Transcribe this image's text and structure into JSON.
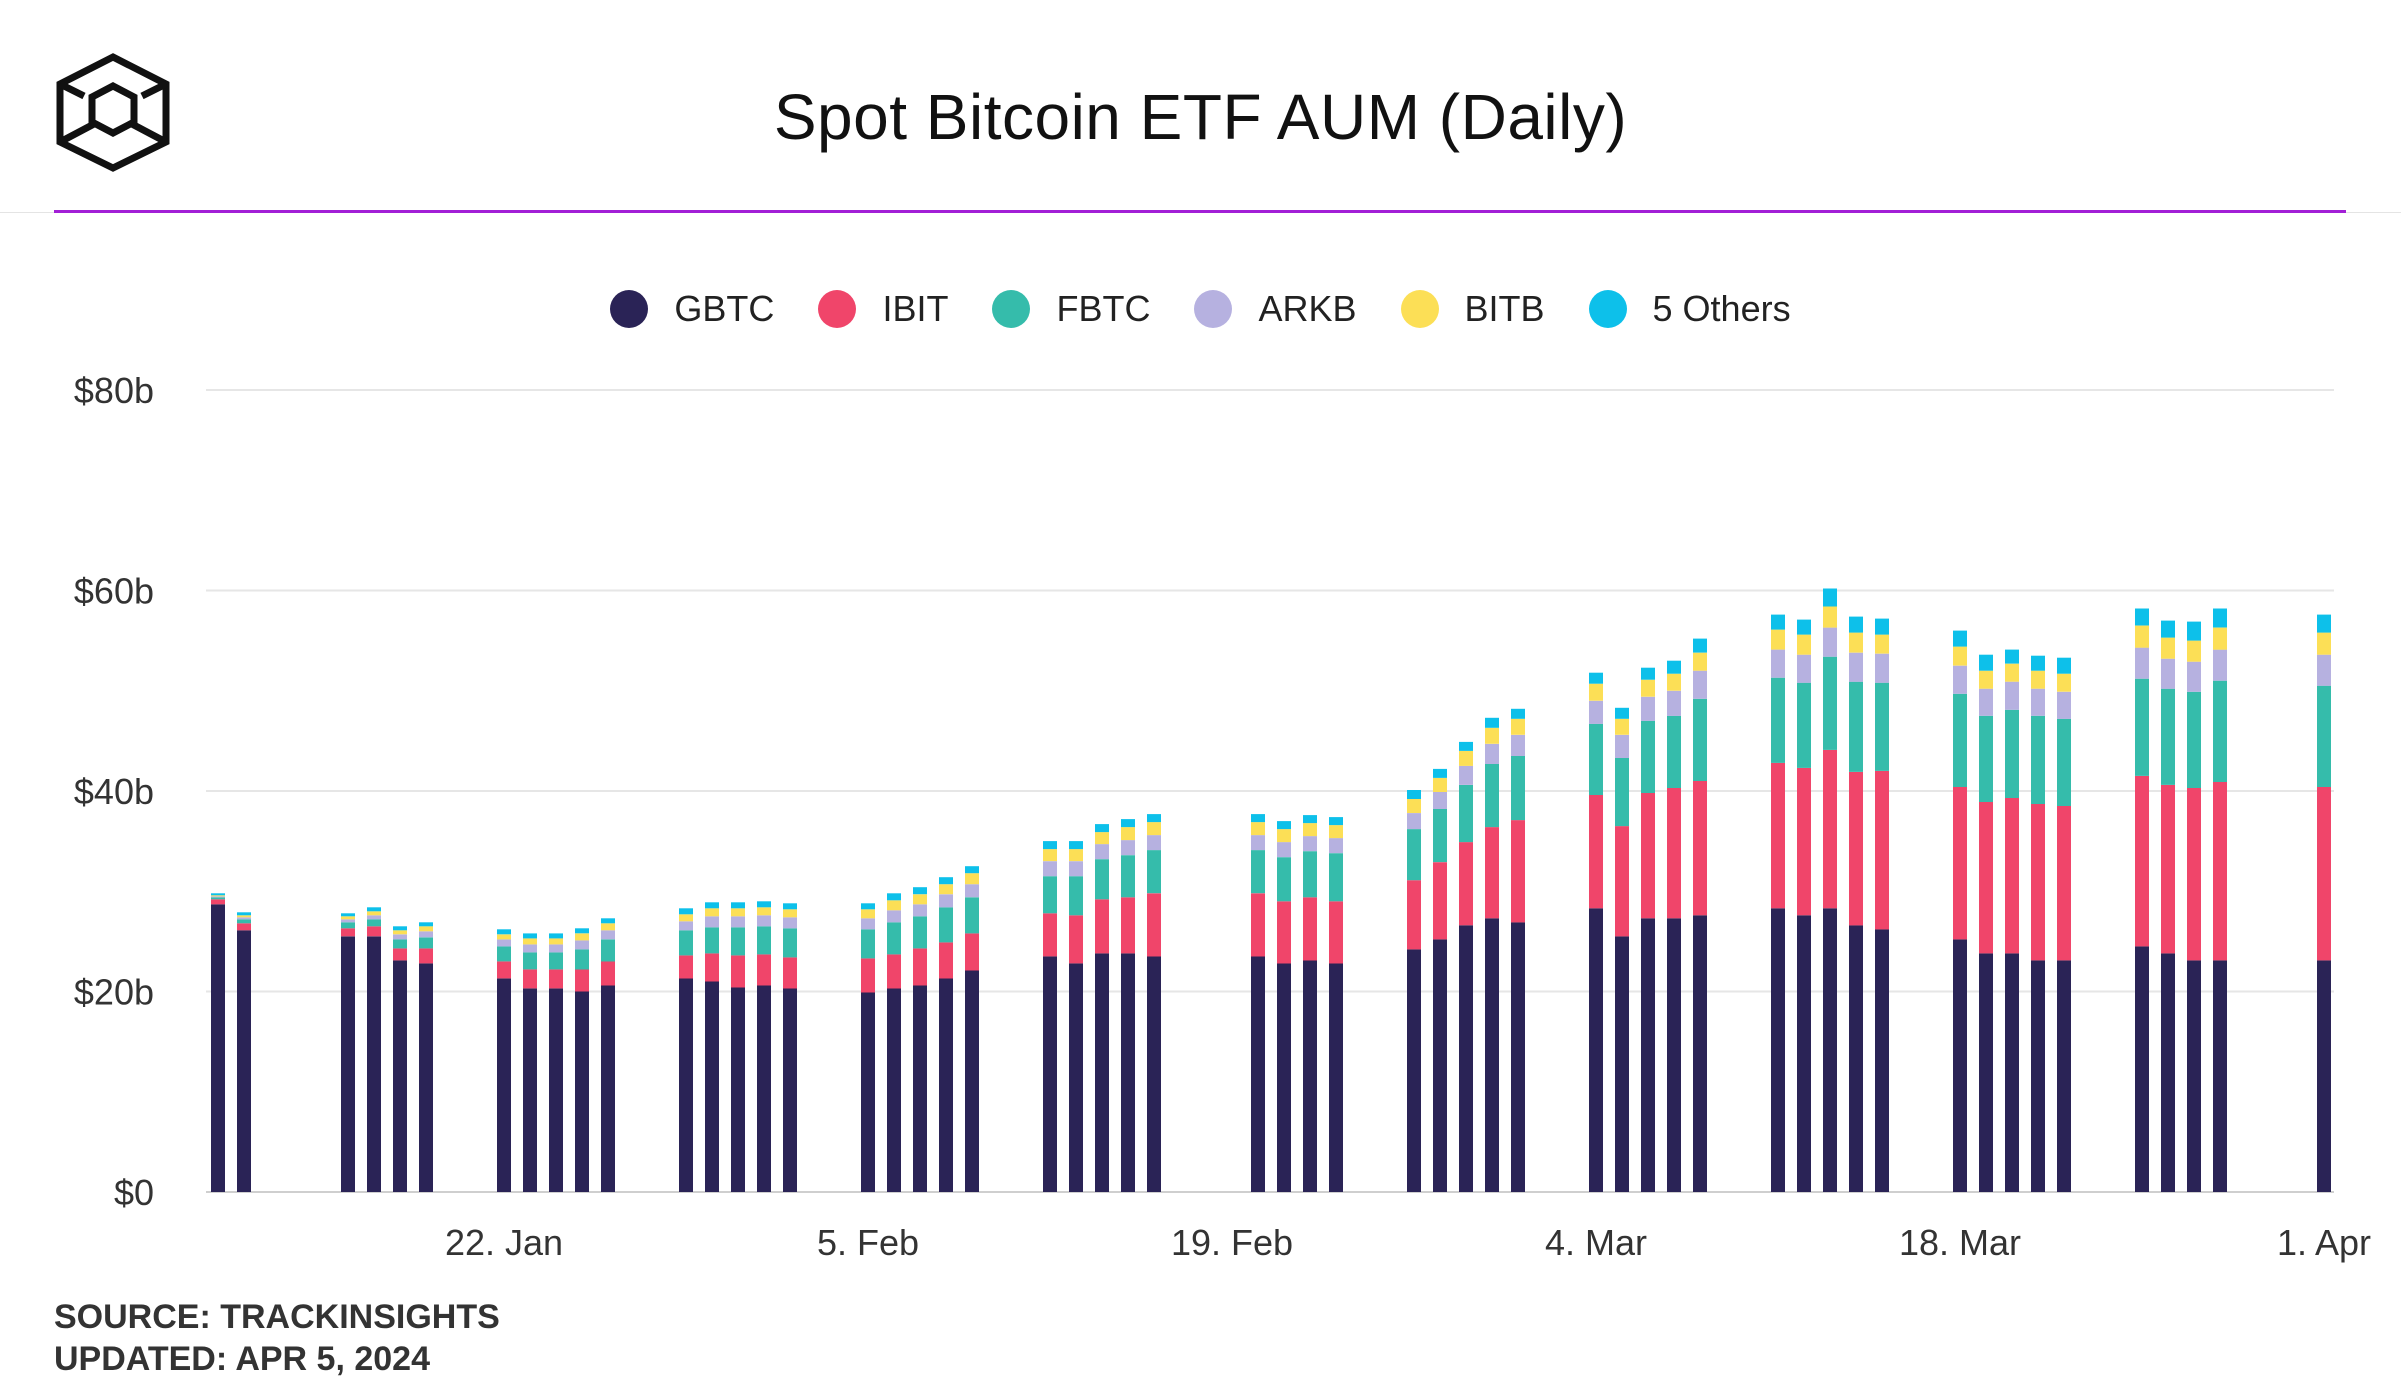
{
  "title": "Spot Bitcoin ETF AUM (Daily)",
  "logo_icon": "the-block-cube-logo-icon",
  "accent_color": "#a21fd6",
  "footer": {
    "source": "SOURCE: TRACKINSIGHTS",
    "updated": "UPDATED: APR 5, 2024"
  },
  "chart_data": {
    "type": "bar",
    "stacked": true,
    "title": "Spot Bitcoin ETF AUM (Daily)",
    "xlabel": "",
    "ylabel": "",
    "ylim": [
      0,
      80
    ],
    "y_ticks": [
      0,
      20,
      40,
      60,
      80
    ],
    "y_tick_labels": [
      "$0",
      "$20b",
      "$40b",
      "$60b",
      "$80b"
    ],
    "grid": true,
    "legend_position": "top-center",
    "x_range": [
      "2024-01-11",
      "2024-04-01"
    ],
    "x_ticks": [
      "2024-01-22",
      "2024-02-05",
      "2024-02-19",
      "2024-03-04",
      "2024-03-18",
      "2024-04-01"
    ],
    "x_tick_labels": [
      "22. Jan",
      "5. Feb",
      "19. Feb",
      "4. Mar",
      "18. Mar",
      "1. Apr"
    ],
    "dates": [
      "2024-01-11",
      "2024-01-12",
      "2024-01-16",
      "2024-01-17",
      "2024-01-18",
      "2024-01-19",
      "2024-01-22",
      "2024-01-23",
      "2024-01-24",
      "2024-01-25",
      "2024-01-26",
      "2024-01-29",
      "2024-01-30",
      "2024-01-31",
      "2024-02-01",
      "2024-02-02",
      "2024-02-05",
      "2024-02-06",
      "2024-02-07",
      "2024-02-08",
      "2024-02-09",
      "2024-02-12",
      "2024-02-13",
      "2024-02-14",
      "2024-02-15",
      "2024-02-16",
      "2024-02-20",
      "2024-02-21",
      "2024-02-22",
      "2024-02-23",
      "2024-02-26",
      "2024-02-27",
      "2024-02-28",
      "2024-02-29",
      "2024-03-01",
      "2024-03-04",
      "2024-03-05",
      "2024-03-06",
      "2024-03-07",
      "2024-03-08",
      "2024-03-11",
      "2024-03-12",
      "2024-03-13",
      "2024-03-14",
      "2024-03-15",
      "2024-03-18",
      "2024-03-19",
      "2024-03-20",
      "2024-03-21",
      "2024-03-22",
      "2024-03-25",
      "2024-03-26",
      "2024-03-27",
      "2024-03-28",
      "2024-04-01"
    ],
    "series": [
      {
        "name": "GBTC",
        "color": "#2a2356",
        "values": [
          28.7,
          26.1,
          25.5,
          25.5,
          23.1,
          22.8,
          21.3,
          20.3,
          20.3,
          20.0,
          20.6,
          21.3,
          21.0,
          20.4,
          20.6,
          20.3,
          19.9,
          20.3,
          20.6,
          21.3,
          22.1,
          23.5,
          22.8,
          23.8,
          23.8,
          23.5,
          23.5,
          22.8,
          23.1,
          22.8,
          24.2,
          25.2,
          26.6,
          27.3,
          26.9,
          28.3,
          25.5,
          27.3,
          27.3,
          27.6,
          28.3,
          27.6,
          28.3,
          26.6,
          26.2,
          25.2,
          23.8,
          23.8,
          23.1,
          23.1,
          24.5,
          23.8,
          23.1,
          23.1,
          23.1
        ]
      },
      {
        "name": "IBIT",
        "color": "#f0456a",
        "values": [
          0.5,
          0.7,
          0.8,
          1.0,
          1.2,
          1.5,
          1.7,
          1.9,
          1.9,
          2.2,
          2.4,
          2.3,
          2.8,
          3.2,
          3.1,
          3.1,
          3.4,
          3.4,
          3.7,
          3.6,
          3.7,
          4.3,
          4.8,
          5.4,
          5.6,
          6.3,
          6.3,
          6.2,
          6.3,
          6.2,
          6.9,
          7.7,
          8.3,
          9.1,
          10.2,
          11.3,
          11.0,
          12.5,
          13.0,
          13.4,
          14.5,
          14.7,
          15.8,
          15.3,
          15.8,
          15.2,
          15.1,
          15.5,
          15.6,
          15.4,
          17.0,
          16.8,
          17.2,
          17.8,
          17.3
        ]
      },
      {
        "name": "FBTC",
        "color": "#35bcab",
        "values": [
          0.2,
          0.4,
          0.6,
          0.7,
          0.9,
          1.1,
          1.5,
          1.7,
          1.7,
          2.0,
          2.2,
          2.5,
          2.6,
          2.8,
          2.8,
          2.9,
          2.9,
          3.2,
          3.2,
          3.5,
          3.6,
          3.7,
          3.9,
          4.0,
          4.2,
          4.3,
          4.3,
          4.4,
          4.6,
          4.8,
          5.1,
          5.3,
          5.7,
          6.3,
          6.4,
          7.1,
          6.8,
          7.2,
          7.2,
          8.2,
          8.5,
          8.5,
          9.3,
          9.0,
          8.8,
          9.3,
          8.6,
          8.8,
          8.8,
          8.7,
          9.7,
          9.6,
          9.6,
          10.1,
          10.1
        ]
      },
      {
        "name": "ARKB",
        "color": "#b6b1e0",
        "values": [
          0.1,
          0.2,
          0.3,
          0.4,
          0.5,
          0.6,
          0.7,
          0.8,
          0.8,
          0.9,
          0.9,
          0.9,
          1.1,
          1.1,
          1.1,
          1.1,
          1.1,
          1.2,
          1.2,
          1.3,
          1.3,
          1.5,
          1.5,
          1.5,
          1.5,
          1.5,
          1.5,
          1.5,
          1.5,
          1.5,
          1.6,
          1.7,
          1.9,
          2.0,
          2.1,
          2.3,
          2.3,
          2.4,
          2.5,
          2.8,
          2.8,
          2.8,
          2.9,
          2.9,
          2.9,
          2.8,
          2.7,
          2.8,
          2.7,
          2.7,
          3.1,
          3.0,
          3.0,
          3.1,
          3.1
        ]
      },
      {
        "name": "BITB",
        "color": "#fcdf56",
        "values": [
          0.1,
          0.2,
          0.3,
          0.4,
          0.4,
          0.5,
          0.5,
          0.6,
          0.6,
          0.7,
          0.7,
          0.7,
          0.8,
          0.8,
          0.8,
          0.8,
          0.9,
          1.0,
          1.0,
          1.0,
          1.1,
          1.2,
          1.2,
          1.2,
          1.3,
          1.3,
          1.3,
          1.3,
          1.3,
          1.3,
          1.4,
          1.4,
          1.5,
          1.6,
          1.6,
          1.7,
          1.6,
          1.7,
          1.7,
          1.8,
          2.0,
          2.0,
          2.1,
          2.0,
          1.9,
          1.9,
          1.8,
          1.8,
          1.8,
          1.8,
          2.2,
          2.1,
          2.1,
          2.2,
          2.2
        ]
      },
      {
        "name": "5 Others",
        "color": "#0dc0ea",
        "values": [
          0.2,
          0.3,
          0.3,
          0.4,
          0.4,
          0.4,
          0.5,
          0.5,
          0.5,
          0.5,
          0.5,
          0.6,
          0.6,
          0.6,
          0.6,
          0.6,
          0.6,
          0.7,
          0.7,
          0.7,
          0.7,
          0.8,
          0.8,
          0.8,
          0.8,
          0.8,
          0.8,
          0.8,
          0.8,
          0.8,
          0.9,
          0.9,
          0.9,
          1.0,
          1.0,
          1.1,
          1.1,
          1.2,
          1.3,
          1.4,
          1.5,
          1.5,
          1.8,
          1.6,
          1.6,
          1.6,
          1.6,
          1.4,
          1.5,
          1.6,
          1.7,
          1.7,
          1.9,
          1.9,
          1.8
        ]
      }
    ]
  }
}
